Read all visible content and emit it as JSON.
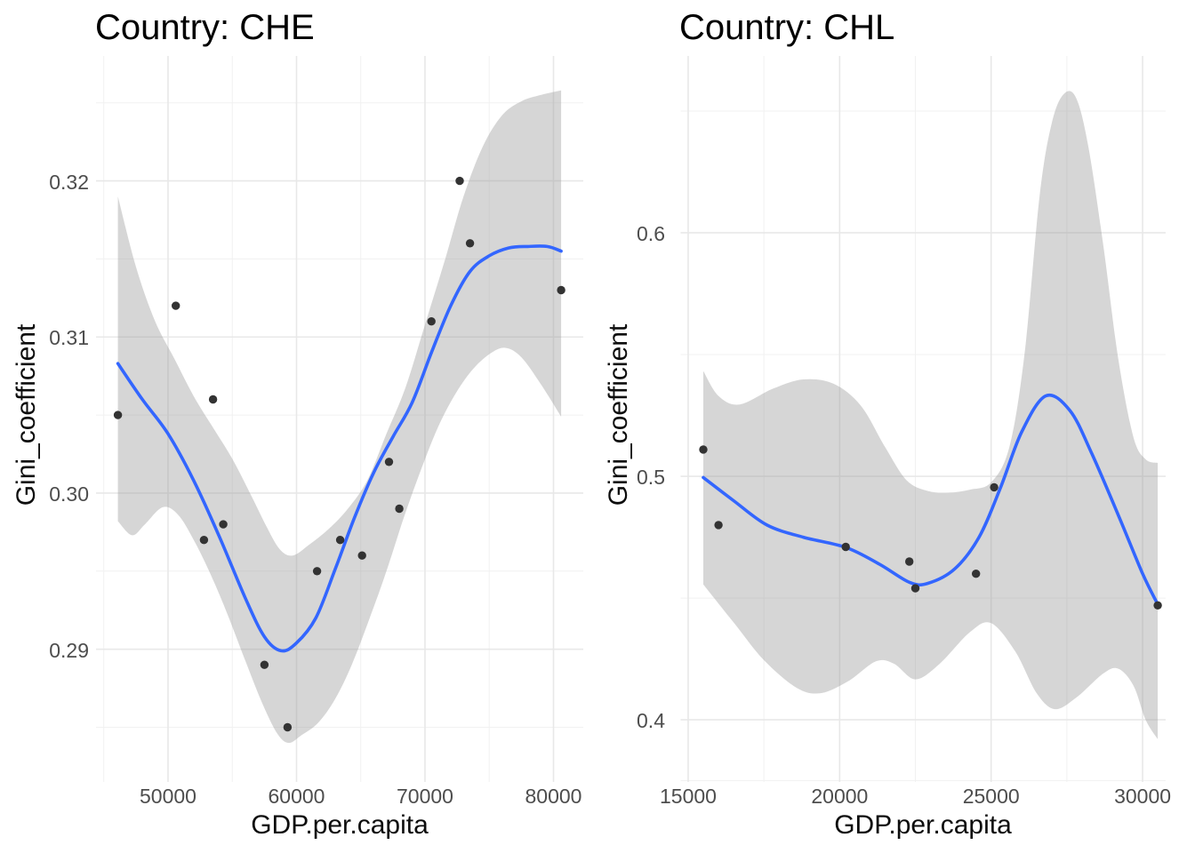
{
  "page": {
    "background": "#ffffff"
  },
  "style": {
    "smooth_line_color": "#3366FF",
    "ci_band_fill": "#999999",
    "ci_band_opacity": 0.4,
    "point_color": "#333333",
    "grid_major_color": "#E8E8E8",
    "grid_minor_color": "#F1F1F1",
    "tick_label_color": "#4D4D4D",
    "title_color": "#000000"
  },
  "chart_data": [
    {
      "type": "scatter",
      "title": "Country: CHE",
      "xlabel": "GDP.per.capita",
      "ylabel": "Gini_coefficient",
      "grid": true,
      "legend": "none",
      "xlim": [
        44395,
        82320
      ],
      "ylim": [
        0.2815,
        0.328
      ],
      "x_ticks": {
        "values": [
          50000,
          60000,
          70000,
          80000
        ],
        "labels": [
          "50000",
          "60000",
          "70000",
          "80000"
        ],
        "minor": [
          45000,
          55000,
          65000,
          75000
        ]
      },
      "y_ticks": {
        "values": [
          0.29,
          0.3,
          0.31,
          0.32
        ],
        "labels": [
          "0.29",
          "0.30",
          "0.31",
          "0.32"
        ],
        "minor": [
          0.285,
          0.295,
          0.305,
          0.315,
          0.325
        ]
      },
      "points": [
        [
          46100,
          0.305
        ],
        [
          50600,
          0.312
        ],
        [
          52800,
          0.297
        ],
        [
          53500,
          0.306
        ],
        [
          54300,
          0.298
        ],
        [
          57500,
          0.289
        ],
        [
          59300,
          0.285
        ],
        [
          61600,
          0.295
        ],
        [
          63400,
          0.297
        ],
        [
          65100,
          0.296
        ],
        [
          67200,
          0.302
        ],
        [
          68000,
          0.299
        ],
        [
          70500,
          0.311
        ],
        [
          72700,
          0.32
        ],
        [
          73500,
          0.316
        ],
        [
          80600,
          0.313
        ]
      ],
      "smooth_line": [
        [
          46100,
          0.3083
        ],
        [
          48000,
          0.306
        ],
        [
          50000,
          0.3038
        ],
        [
          52000,
          0.3008
        ],
        [
          54000,
          0.2972
        ],
        [
          56000,
          0.2933
        ],
        [
          57500,
          0.2908
        ],
        [
          58800,
          0.2899
        ],
        [
          60000,
          0.2904
        ],
        [
          61500,
          0.292
        ],
        [
          63000,
          0.2951
        ],
        [
          64500,
          0.2984
        ],
        [
          66000,
          0.3013
        ],
        [
          67500,
          0.3036
        ],
        [
          69000,
          0.3058
        ],
        [
          70500,
          0.309
        ],
        [
          72000,
          0.312
        ],
        [
          73500,
          0.3142
        ],
        [
          75000,
          0.3152
        ],
        [
          76500,
          0.3157
        ],
        [
          78000,
          0.3158
        ],
        [
          79500,
          0.3158
        ],
        [
          80600,
          0.3155
        ]
      ],
      "ci_band": {
        "top": [
          [
            46100,
            0.319
          ],
          [
            47500,
            0.3145
          ],
          [
            49000,
            0.311
          ],
          [
            50500,
            0.3086
          ],
          [
            52000,
            0.3062
          ],
          [
            53500,
            0.3042
          ],
          [
            55000,
            0.3022
          ],
          [
            56500,
            0.2998
          ],
          [
            57700,
            0.2978
          ],
          [
            58700,
            0.2964
          ],
          [
            59700,
            0.296
          ],
          [
            61000,
            0.2967
          ],
          [
            62500,
            0.2977
          ],
          [
            64000,
            0.299
          ],
          [
            65500,
            0.3008
          ],
          [
            67000,
            0.3038
          ],
          [
            68500,
            0.3068
          ],
          [
            70000,
            0.3108
          ],
          [
            71500,
            0.3148
          ],
          [
            73000,
            0.319
          ],
          [
            74500,
            0.3222
          ],
          [
            76000,
            0.3242
          ],
          [
            77500,
            0.3251
          ],
          [
            79000,
            0.3255
          ],
          [
            80600,
            0.3258
          ]
        ],
        "bottom": [
          [
            46100,
            0.2982
          ],
          [
            47200,
            0.2973
          ],
          [
            48200,
            0.298
          ],
          [
            49600,
            0.2991
          ],
          [
            50800,
            0.2986
          ],
          [
            52000,
            0.297
          ],
          [
            53200,
            0.295
          ],
          [
            54500,
            0.2925
          ],
          [
            56000,
            0.2893
          ],
          [
            57300,
            0.2866
          ],
          [
            58500,
            0.2846
          ],
          [
            59400,
            0.284
          ],
          [
            60400,
            0.2845
          ],
          [
            61700,
            0.2853
          ],
          [
            63000,
            0.2868
          ],
          [
            64300,
            0.289
          ],
          [
            65700,
            0.292
          ],
          [
            67000,
            0.295
          ],
          [
            68300,
            0.2983
          ],
          [
            69600,
            0.3013
          ],
          [
            71000,
            0.3042
          ],
          [
            72400,
            0.3064
          ],
          [
            73800,
            0.308
          ],
          [
            75200,
            0.309
          ],
          [
            76300,
            0.3093
          ],
          [
            77500,
            0.3087
          ],
          [
            79000,
            0.307
          ],
          [
            80600,
            0.3049
          ]
        ]
      }
    },
    {
      "type": "scatter",
      "title": "Country: CHL",
      "xlabel": "GDP.per.capita",
      "ylabel": "Gini_coefficient",
      "grid": true,
      "legend": "none",
      "xlim": [
        14751,
        30761
      ],
      "ylim": [
        0.3745,
        0.6726
      ],
      "x_ticks": {
        "values": [
          15000,
          20000,
          25000,
          30000
        ],
        "labels": [
          "15000",
          "20000",
          "25000",
          "30000"
        ],
        "minor": [
          17500,
          22500,
          27500
        ]
      },
      "y_ticks": {
        "values": [
          0.4,
          0.5,
          0.6
        ],
        "labels": [
          "0.4",
          "0.5",
          "0.6"
        ],
        "minor": [
          0.375,
          0.45,
          0.55,
          0.65
        ]
      },
      "points": [
        [
          15500,
          0.511
        ],
        [
          16000,
          0.48
        ],
        [
          20200,
          0.471
        ],
        [
          22300,
          0.465
        ],
        [
          22500,
          0.454
        ],
        [
          24500,
          0.46
        ],
        [
          25100,
          0.4955
        ],
        [
          30500,
          0.447
        ]
      ],
      "smooth_line": [
        [
          15500,
          0.4995
        ],
        [
          16500,
          0.49
        ],
        [
          17600,
          0.48
        ],
        [
          18800,
          0.475
        ],
        [
          20200,
          0.4708
        ],
        [
          21300,
          0.464
        ],
        [
          22300,
          0.4565
        ],
        [
          22900,
          0.456
        ],
        [
          23800,
          0.462
        ],
        [
          24600,
          0.475
        ],
        [
          25300,
          0.495
        ],
        [
          26000,
          0.518
        ],
        [
          26800,
          0.533
        ],
        [
          27600,
          0.527
        ],
        [
          28300,
          0.51
        ],
        [
          29200,
          0.484
        ],
        [
          30000,
          0.46
        ],
        [
          30500,
          0.4474
        ]
      ],
      "ci_band": {
        "top": [
          [
            15500,
            0.5432
          ],
          [
            16000,
            0.533
          ],
          [
            16700,
            0.5295
          ],
          [
            17800,
            0.536
          ],
          [
            18800,
            0.5398
          ],
          [
            19800,
            0.538
          ],
          [
            20700,
            0.529
          ],
          [
            21500,
            0.512
          ],
          [
            22200,
            0.4985
          ],
          [
            22900,
            0.494
          ],
          [
            23600,
            0.4933
          ],
          [
            24300,
            0.4945
          ],
          [
            25000,
            0.4975
          ],
          [
            25600,
            0.512
          ],
          [
            26100,
            0.55
          ],
          [
            26600,
            0.615
          ],
          [
            27000,
            0.645
          ],
          [
            27400,
            0.657
          ],
          [
            27800,
            0.6555
          ],
          [
            28200,
            0.636
          ],
          [
            28700,
            0.595
          ],
          [
            29200,
            0.548
          ],
          [
            29700,
            0.516
          ],
          [
            30100,
            0.507
          ],
          [
            30500,
            0.5055
          ]
        ],
        "bottom": [
          [
            15500,
            0.4556
          ],
          [
            16500,
            0.44
          ],
          [
            17500,
            0.4245
          ],
          [
            18600,
            0.413
          ],
          [
            19400,
            0.411
          ],
          [
            20300,
            0.416
          ],
          [
            21200,
            0.424
          ],
          [
            21800,
            0.423
          ],
          [
            22500,
            0.4166
          ],
          [
            23300,
            0.423
          ],
          [
            24300,
            0.436
          ],
          [
            25000,
            0.4397
          ],
          [
            25800,
            0.428
          ],
          [
            26500,
            0.411
          ],
          [
            27100,
            0.4044
          ],
          [
            27800,
            0.409
          ],
          [
            28700,
            0.419
          ],
          [
            29200,
            0.421
          ],
          [
            29700,
            0.414
          ],
          [
            30100,
            0.4
          ],
          [
            30500,
            0.3921
          ]
        ]
      }
    }
  ]
}
